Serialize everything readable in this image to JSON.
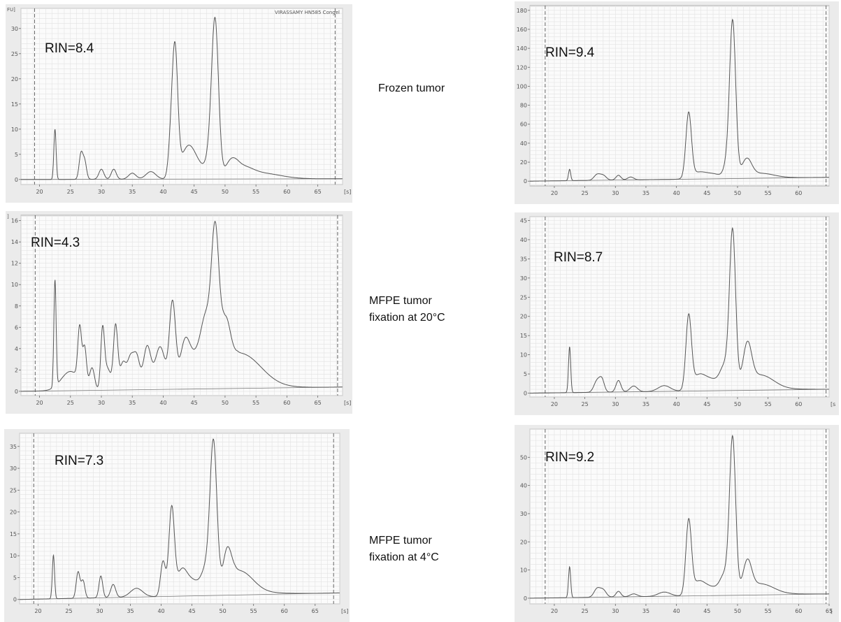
{
  "conditions": [
    {
      "lines": [
        "Frozen tumor"
      ]
    },
    {
      "lines": [
        "MFPE tumor",
        "fixation at 20°C"
      ]
    },
    {
      "lines": [
        "MFPE tumor",
        "fixation at 4°C"
      ]
    }
  ],
  "chart_data": [
    {
      "type": "line",
      "rin": "RIN=8.4",
      "xlim": [
        17,
        69
      ],
      "ylim": [
        -1,
        34
      ],
      "xticks": [
        20,
        25,
        30,
        35,
        40,
        45,
        50,
        55,
        60,
        65
      ],
      "yticks": [
        0,
        5,
        10,
        15,
        20,
        25,
        30
      ],
      "xunit": "[s]",
      "yunit": "FU]",
      "header": "VIRASSAMY HN585 Congel",
      "dashed_lines": [
        19.2,
        67.8
      ],
      "baseline": [
        [
          17,
          0
        ],
        [
          69,
          0.15
        ]
      ],
      "tail": 0.2,
      "peaks": [
        [
          22.5,
          10,
          0.18
        ],
        [
          26.7,
          5,
          0.3
        ],
        [
          27.3,
          3.5,
          0.3
        ],
        [
          30,
          2,
          0.4
        ],
        [
          32,
          2,
          0.4
        ],
        [
          35,
          1.2,
          0.6
        ],
        [
          38,
          1.5,
          0.8
        ],
        [
          41.2,
          5.5,
          0.4
        ],
        [
          41.9,
          25,
          0.45
        ],
        [
          43.5,
          3.5,
          1
        ],
        [
          44.5,
          3.5,
          1
        ],
        [
          46,
          2,
          1.2
        ],
        [
          47.6,
          4,
          0.6
        ],
        [
          48.4,
          30,
          0.55
        ],
        [
          51,
          3,
          1
        ],
        [
          53,
          1.5,
          1.5
        ],
        [
          56,
          1,
          3
        ]
      ]
    },
    {
      "type": "line",
      "rin": "RIN=4.3",
      "xlim": [
        17,
        69
      ],
      "ylim": [
        -0.4,
        16.5
      ],
      "xticks": [
        20,
        25,
        30,
        35,
        40,
        45,
        50,
        55,
        60,
        65
      ],
      "yticks": [
        0,
        2,
        4,
        6,
        8,
        10,
        12,
        14,
        16
      ],
      "xunit": "[s]",
      "yunit": "]",
      "header": "",
      "dashed_lines": [
        19.3,
        68.2
      ],
      "baseline": [
        [
          17,
          0
        ],
        [
          69,
          0.4
        ]
      ],
      "tail": 0.5,
      "peaks": [
        [
          22.5,
          10,
          0.18
        ],
        [
          25,
          1.8,
          1.5
        ],
        [
          26.5,
          5,
          0.3
        ],
        [
          27.3,
          3.5,
          0.3
        ],
        [
          28.5,
          2,
          0.4
        ],
        [
          30.2,
          5.5,
          0.3
        ],
        [
          31,
          2,
          0.5
        ],
        [
          32.3,
          6,
          0.35
        ],
        [
          33.5,
          2.5,
          0.5
        ],
        [
          34.7,
          2.8,
          0.5
        ],
        [
          35.7,
          3,
          0.5
        ],
        [
          37.4,
          4,
          0.6
        ],
        [
          39.5,
          4,
          0.8
        ],
        [
          41.5,
          8,
          0.5
        ],
        [
          43.5,
          4,
          0.8
        ],
        [
          45.5,
          3,
          1.2
        ],
        [
          47,
          5,
          0.8
        ],
        [
          48.4,
          13,
          0.6
        ],
        [
          50,
          5,
          0.8
        ],
        [
          53,
          2.5,
          3
        ]
      ]
    },
    {
      "type": "line",
      "rin": "RIN=7.3",
      "xlim": [
        17,
        69
      ],
      "ylim": [
        -1,
        38
      ],
      "xticks": [
        20,
        25,
        30,
        35,
        40,
        45,
        50,
        55,
        60,
        65
      ],
      "yticks": [
        0,
        5,
        10,
        15,
        20,
        25,
        30,
        35
      ],
      "xunit": "[s]",
      "yunit": "",
      "header": "",
      "dashed_lines": [
        19.3,
        68
      ],
      "baseline": [
        [
          17,
          0
        ],
        [
          69,
          1.5
        ]
      ],
      "tail": 1,
      "peaks": [
        [
          22.5,
          10,
          0.18
        ],
        [
          26.5,
          6,
          0.3
        ],
        [
          27.3,
          4,
          0.3
        ],
        [
          30.2,
          5,
          0.3
        ],
        [
          32.2,
          3,
          0.4
        ],
        [
          36,
          2,
          1
        ],
        [
          40.3,
          8,
          0.4
        ],
        [
          41.7,
          20,
          0.45
        ],
        [
          43.3,
          5,
          0.8
        ],
        [
          45,
          3.5,
          1.2
        ],
        [
          47.4,
          6,
          0.8
        ],
        [
          48.5,
          33,
          0.55
        ],
        [
          50.7,
          8,
          0.7
        ],
        [
          53,
          4,
          2
        ]
      ]
    },
    {
      "type": "line",
      "rin": "RIN=9.4",
      "xlim": [
        16,
        65
      ],
      "ylim": [
        -5,
        185
      ],
      "xticks": [
        20,
        25,
        30,
        35,
        40,
        45,
        50,
        55,
        60
      ],
      "yticks": [
        0,
        20,
        40,
        60,
        80,
        100,
        120,
        140,
        160,
        180
      ],
      "xunit": "",
      "yunit": "",
      "header": "",
      "dashed_lines": [
        18.5,
        64.5
      ],
      "baseline": [
        [
          16,
          0
        ],
        [
          65,
          4
        ]
      ],
      "tail": 1,
      "peaks": [
        [
          22.5,
          12,
          0.18
        ],
        [
          27,
          6,
          0.5
        ],
        [
          28,
          5,
          0.5
        ],
        [
          30.5,
          5,
          0.4
        ],
        [
          32.5,
          3,
          0.5
        ],
        [
          42,
          68,
          0.45
        ],
        [
          43.5,
          6,
          1.2
        ],
        [
          46,
          5,
          1.5
        ],
        [
          48.2,
          12,
          0.5
        ],
        [
          49.2,
          165,
          0.5
        ],
        [
          51.5,
          18,
          0.8
        ],
        [
          54,
          4,
          2
        ]
      ]
    },
    {
      "type": "line",
      "rin": "RIN=8.7",
      "xlim": [
        16,
        65
      ],
      "ylim": [
        -1,
        46
      ],
      "xticks": [
        20,
        25,
        30,
        35,
        40,
        45,
        50,
        55,
        60
      ],
      "yticks": [
        0,
        5,
        10,
        15,
        20,
        25,
        30,
        35,
        40,
        45
      ],
      "xunit": "[s",
      "yunit": "",
      "header": "",
      "dashed_lines": [
        18.5,
        64.5
      ],
      "baseline": [
        [
          16,
          0
        ],
        [
          65,
          1
        ]
      ],
      "tail": 0.8,
      "peaks": [
        [
          22.5,
          12,
          0.18
        ],
        [
          27,
          3,
          0.5
        ],
        [
          27.8,
          3,
          0.4
        ],
        [
          30.5,
          3,
          0.4
        ],
        [
          33,
          1.5,
          0.6
        ],
        [
          38,
          1.5,
          1
        ],
        [
          42,
          19,
          0.45
        ],
        [
          43.5,
          3,
          1
        ],
        [
          45.5,
          3,
          1.5
        ],
        [
          48,
          6,
          0.8
        ],
        [
          49.2,
          40,
          0.5
        ],
        [
          51.6,
          10,
          0.7
        ],
        [
          54,
          3,
          2
        ]
      ]
    },
    {
      "type": "line",
      "rin": "RIN=9.2",
      "xlim": [
        16,
        65
      ],
      "ylim": [
        -2,
        60
      ],
      "xticks": [
        20,
        25,
        30,
        35,
        40,
        45,
        50,
        55,
        60,
        65
      ],
      "yticks": [
        0,
        10,
        20,
        30,
        40,
        50
      ],
      "xunit": "[",
      "yunit": "",
      "header": "",
      "dashed_lines": [
        18.5,
        64.5
      ],
      "baseline": [
        [
          16,
          0
        ],
        [
          65,
          1.5
        ]
      ],
      "tail": 0.8,
      "peaks": [
        [
          22.5,
          11,
          0.18
        ],
        [
          27,
          3,
          0.5
        ],
        [
          28,
          2.5,
          0.5
        ],
        [
          30.5,
          2,
          0.4
        ],
        [
          33,
          1,
          0.6
        ],
        [
          38,
          1.5,
          1
        ],
        [
          42,
          26,
          0.45
        ],
        [
          43.5,
          4,
          1
        ],
        [
          45.5,
          3,
          1.5
        ],
        [
          48,
          7,
          0.8
        ],
        [
          49.2,
          54,
          0.5
        ],
        [
          51.6,
          10,
          0.7
        ],
        [
          54,
          3,
          2
        ]
      ]
    }
  ]
}
